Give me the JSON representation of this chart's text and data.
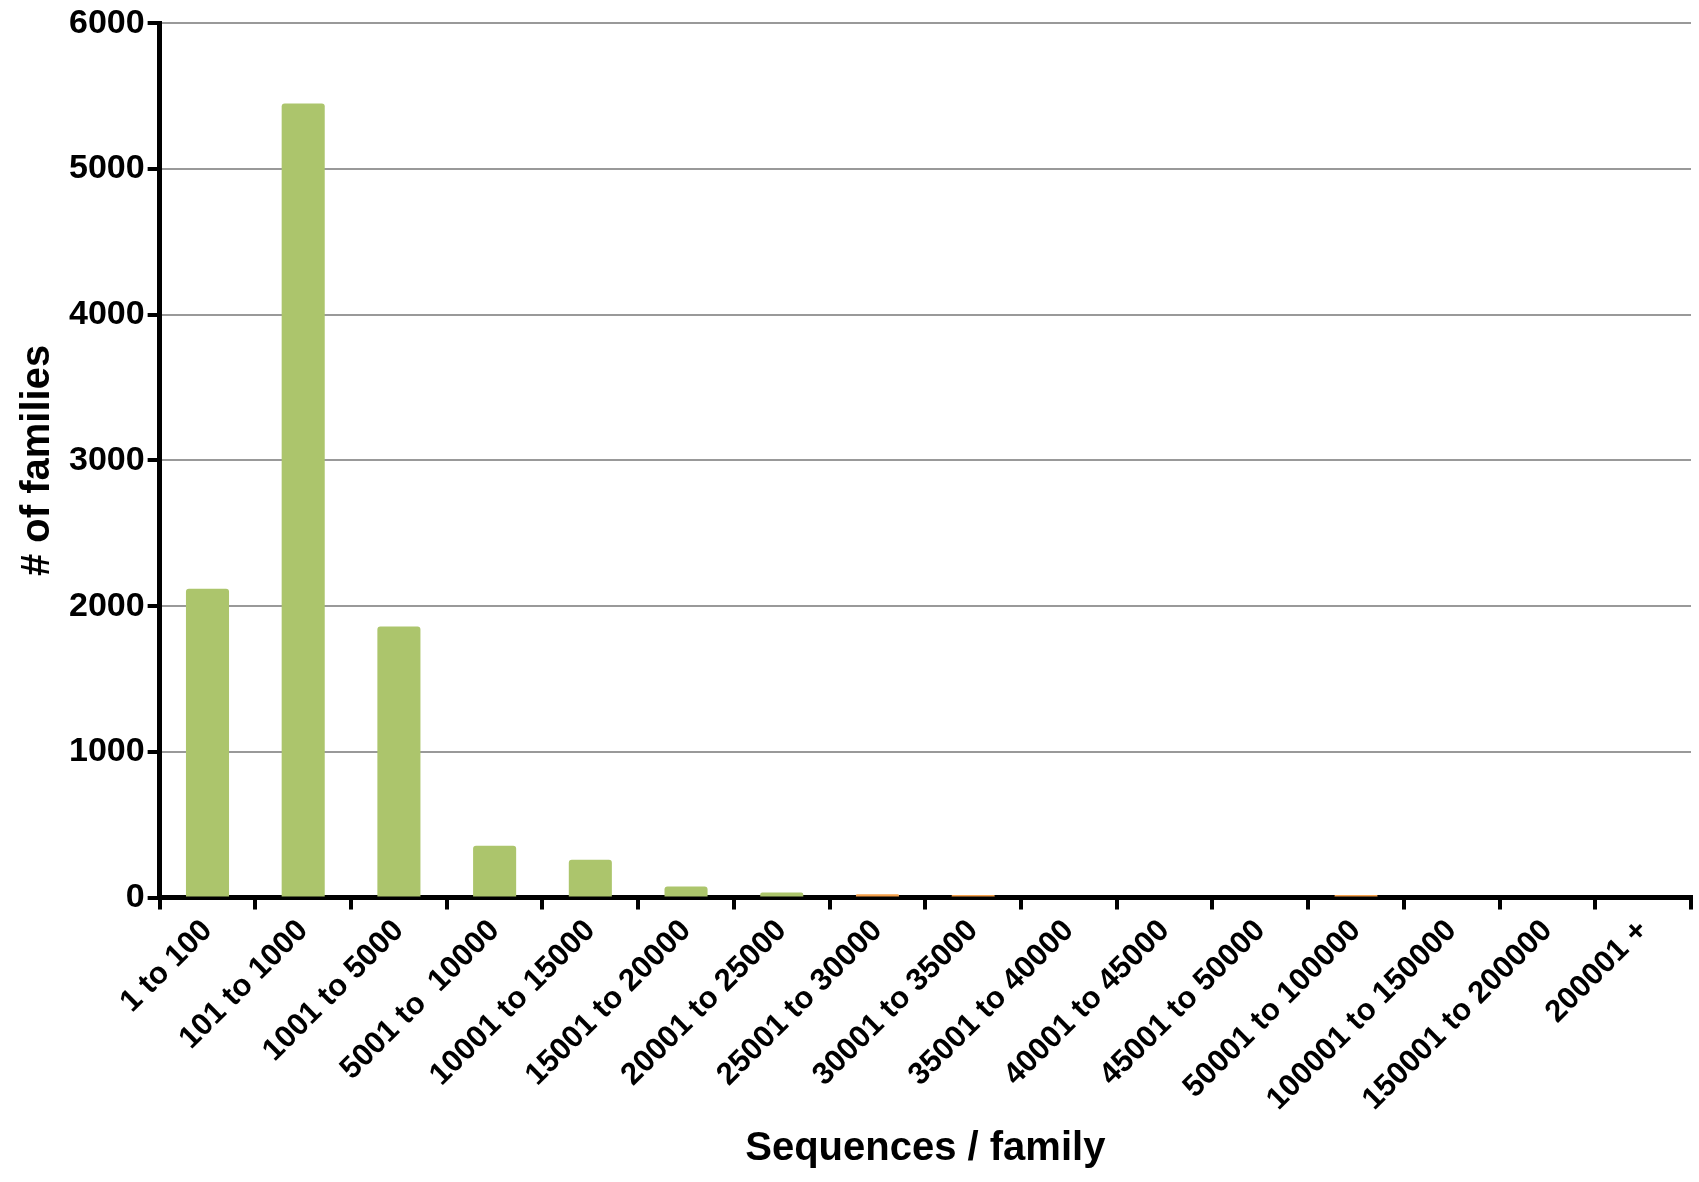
{
  "chart_data": {
    "type": "bar",
    "xlabel": "Sequences / family",
    "ylabel": "# of families",
    "categories": [
      "1 to 100",
      "101 to 1000",
      "1001 to 5000",
      "5001 to  10000",
      "10001 to 15000",
      "15001 to 20000",
      "20001 to 25000",
      "25001 to 30000",
      "30001 to 35000",
      "35001 to 40000",
      "40001 to 45000",
      "45001 to 50000",
      "50001 to 100000",
      "100001 to 150000",
      "150001 to 200000",
      "200001 +"
    ],
    "values": [
      2120,
      5450,
      1860,
      355,
      260,
      75,
      35,
      22,
      18,
      0,
      0,
      0,
      18,
      0,
      0,
      0
    ],
    "colors": [
      "#acc56c",
      "#acc56c",
      "#acc56c",
      "#acc56c",
      "#acc56c",
      "#acc56c",
      "#acc56c",
      "#f5a04a",
      "#f5a04a",
      "#acc56c",
      "#acc56c",
      "#acc56c",
      "#f5a04a",
      "#acc56c",
      "#acc56c",
      "#acc56c"
    ],
    "ylim": [
      0,
      6000
    ],
    "yticks": [
      0,
      1000,
      2000,
      3000,
      4000,
      5000,
      6000
    ],
    "grid": "y",
    "legend": false
  }
}
